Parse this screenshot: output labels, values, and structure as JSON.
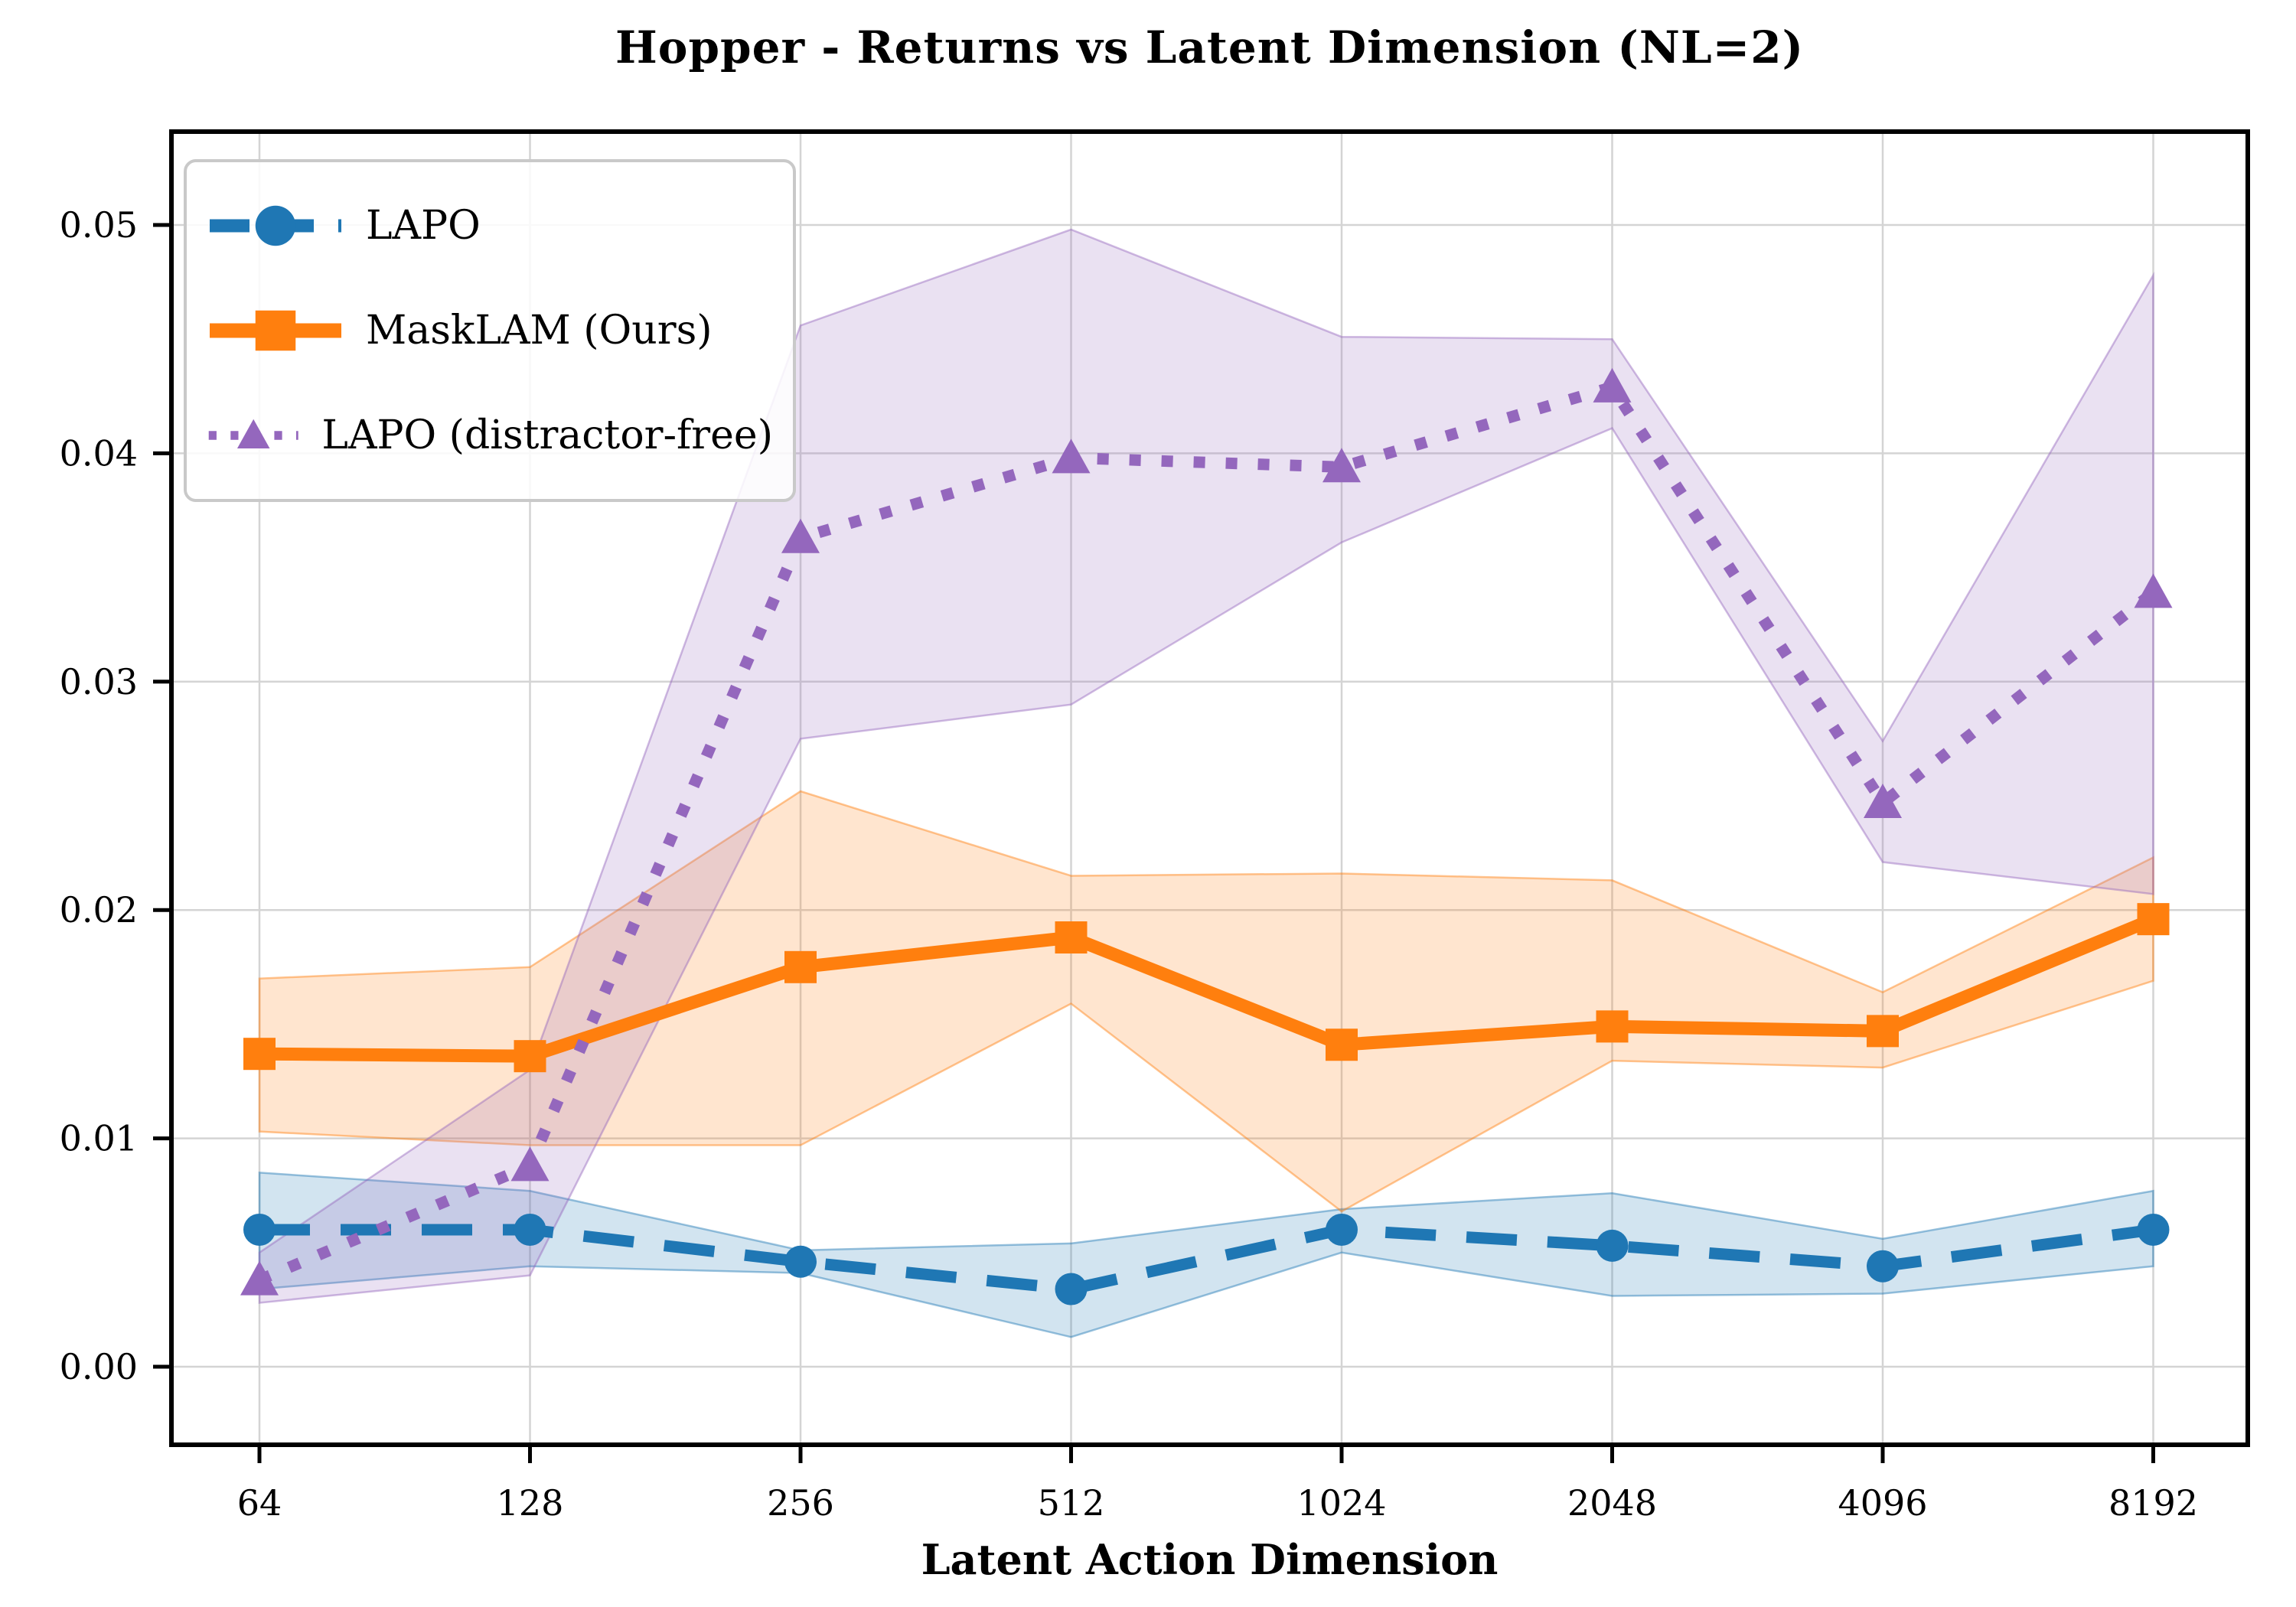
{
  "figure": {
    "title": "Hopper - Returns vs Latent Dimension (NL=2)",
    "xlabel": "Latent Action Dimension"
  },
  "chart_data": {
    "type": "line",
    "title": "Hopper - Returns vs Latent Dimension (NL=2)",
    "xlabel": "Latent Action Dimension",
    "ylabel": "",
    "categories": [
      "64",
      "128",
      "256",
      "512",
      "1024",
      "2048",
      "4096",
      "8192"
    ],
    "y_ticks": [
      0.0,
      0.01,
      0.02,
      0.03,
      0.04,
      0.05
    ],
    "ylim": [
      -0.0034,
      0.0541
    ],
    "grid": true,
    "legend_position": "upper left",
    "colors": {
      "grid": "#d4d4d4",
      "spine": "#000000",
      "background": "#ffffff",
      "band_alpha": 0.2
    },
    "series": [
      {
        "name": "LAPO",
        "color": "#1f77b4",
        "line_style": "dashed",
        "marker": "circle",
        "values": [
          0.006,
          0.006,
          0.0046,
          0.0034,
          0.006,
          0.0053,
          0.0044,
          0.006
        ],
        "band_low": [
          0.0034,
          0.0044,
          0.0041,
          0.0013,
          0.005,
          0.0031,
          0.0032,
          0.0044
        ],
        "band_high": [
          0.0085,
          0.0077,
          0.0051,
          0.0054,
          0.0069,
          0.0076,
          0.0056,
          0.0077
        ]
      },
      {
        "name": "MaskLAM (Ours)",
        "color": "#ff7f0e",
        "line_style": "solid",
        "marker": "square",
        "values": [
          0.0137,
          0.0136,
          0.0175,
          0.0188,
          0.0141,
          0.0149,
          0.0147,
          0.0196
        ],
        "band_low": [
          0.0103,
          0.0097,
          0.0097,
          0.0159,
          0.0068,
          0.0134,
          0.0131,
          0.0169
        ],
        "band_high": [
          0.017,
          0.0175,
          0.0252,
          0.0215,
          0.0216,
          0.0213,
          0.0164,
          0.0223
        ]
      },
      {
        "name": "LAPO (distractor-free)",
        "color": "#9467bd",
        "line_style": "dotted",
        "marker": "triangle",
        "values": [
          0.0038,
          0.0088,
          0.0363,
          0.0398,
          0.0394,
          0.0429,
          0.0247,
          0.0339
        ],
        "band_low": [
          0.0028,
          0.004,
          0.0275,
          0.029,
          0.0361,
          0.0411,
          0.0221,
          0.0207
        ],
        "band_high": [
          0.005,
          0.013,
          0.0456,
          0.0498,
          0.0451,
          0.045,
          0.0274,
          0.0478
        ]
      }
    ]
  }
}
